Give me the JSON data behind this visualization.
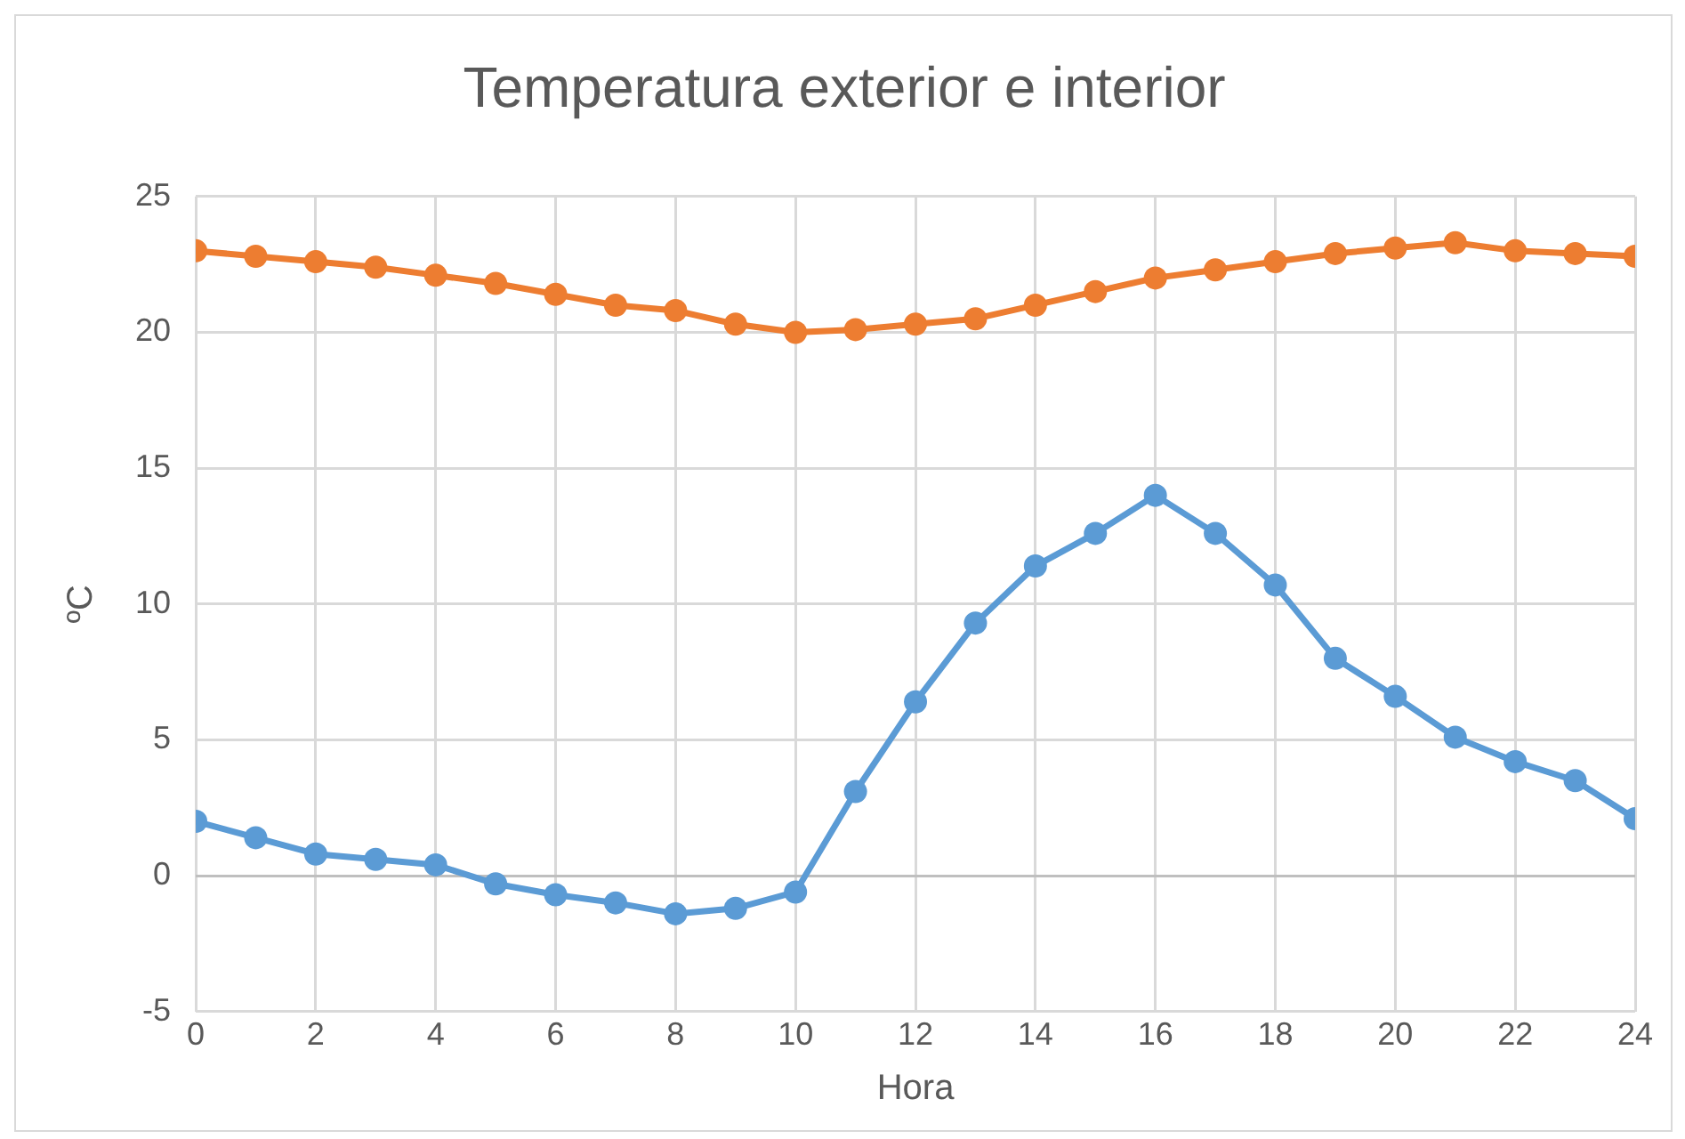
{
  "chart_data": {
    "type": "line",
    "title": "Temperatura exterior e interior",
    "xlabel": "Hora",
    "ylabel": "ºC",
    "x": [
      0,
      1,
      2,
      3,
      4,
      5,
      6,
      7,
      8,
      9,
      10,
      11,
      12,
      13,
      14,
      15,
      16,
      17,
      18,
      19,
      20,
      21,
      22,
      23,
      24
    ],
    "series": [
      {
        "color": "#ed7d31",
        "values": [
          23.0,
          22.8,
          22.6,
          22.4,
          22.1,
          21.8,
          21.4,
          21.0,
          20.8,
          20.3,
          20.0,
          20.1,
          20.3,
          20.5,
          21.0,
          21.5,
          22.0,
          22.3,
          22.6,
          22.9,
          23.1,
          23.3,
          23.0,
          22.9,
          22.8
        ]
      },
      {
        "color": "#5b9bd5",
        "values": [
          2.0,
          1.4,
          0.8,
          0.6,
          0.4,
          -0.3,
          -0.7,
          -1.0,
          -1.4,
          -1.2,
          -0.6,
          3.1,
          6.4,
          9.3,
          11.4,
          12.6,
          14.0,
          12.6,
          10.7,
          8.0,
          6.6,
          5.1,
          4.2,
          3.5,
          2.1
        ]
      }
    ],
    "xlim": [
      0,
      24
    ],
    "xticks": [
      0,
      2,
      4,
      6,
      8,
      10,
      12,
      14,
      16,
      18,
      20,
      22,
      24
    ],
    "ylim": [
      -5,
      25
    ],
    "yticks": [
      -5,
      0,
      5,
      10,
      15,
      20,
      25
    ],
    "grid": true,
    "legend": false,
    "marker": "circle",
    "line_style": "solid"
  }
}
